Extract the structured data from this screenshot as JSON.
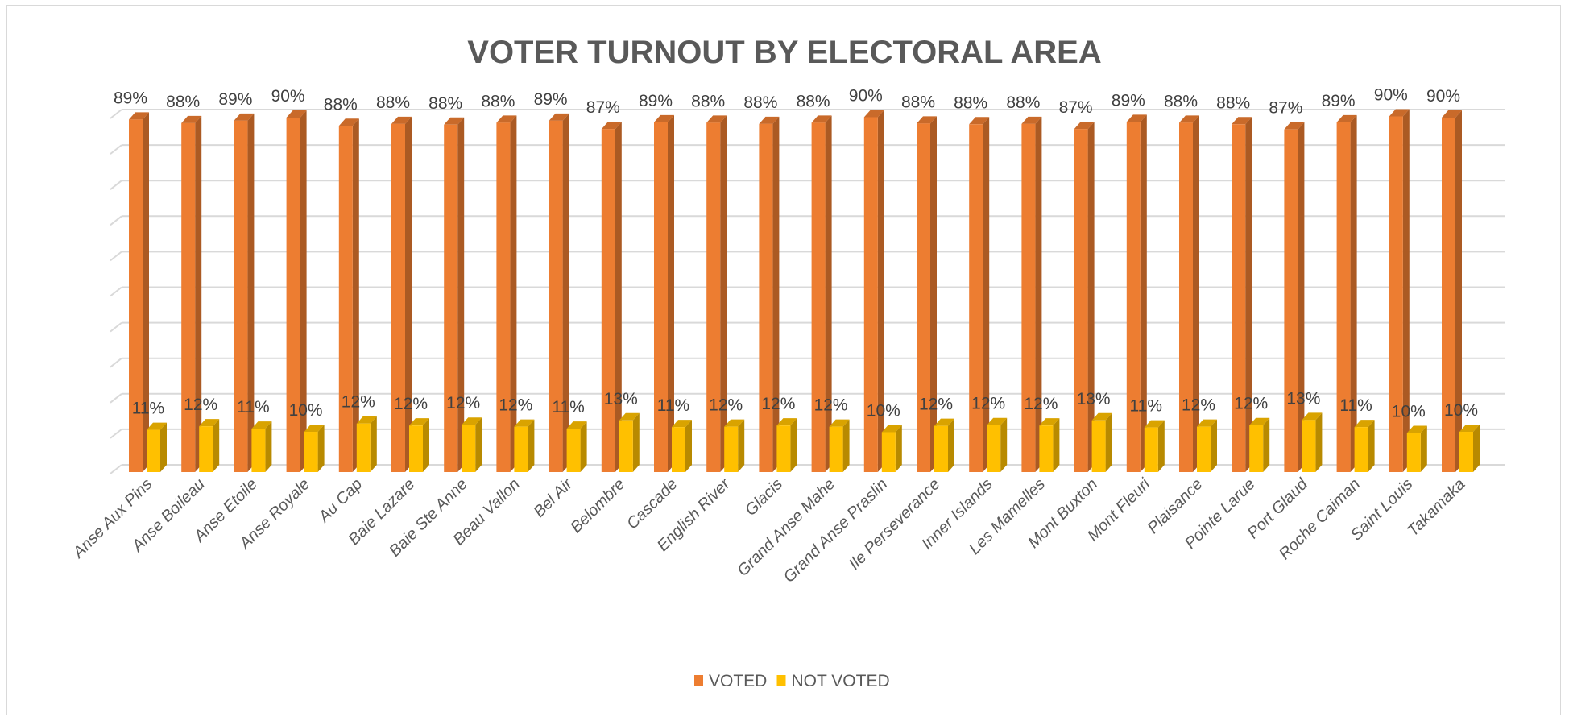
{
  "chart_data": {
    "type": "bar",
    "title": "VOTER TURNOUT BY ELECTORAL AREA",
    "categories": [
      "Anse Aux Pins",
      "Anse Boileau",
      "Anse Etoile",
      "Anse Royale",
      "Au Cap",
      "Baie Lazare",
      "Baie Ste Anne",
      "Beau Vallon",
      "Bel Air",
      "Belombre",
      "Cascade",
      "English River",
      "Glacis",
      "Grand Anse Mahe",
      "Grand Anse Praslin",
      "Ile Perseverance",
      "Inner Islands",
      "Les Mamelles",
      "Mont Buxton",
      "Mont Fleuri",
      "Plaisance",
      "Pointe Larue",
      "Port Glaud",
      "Roche Caiman",
      "Saint Louis",
      "Takamaka"
    ],
    "series": [
      {
        "name": "VOTED",
        "color": "#ED7D31",
        "values": [
          89.3,
          88.4,
          89.0,
          89.8,
          87.7,
          88.2,
          88.0,
          88.5,
          89.0,
          86.9,
          88.6,
          88.5,
          88.2,
          88.5,
          89.9,
          88.3,
          88.1,
          88.2,
          86.9,
          88.7,
          88.5,
          88.1,
          86.8,
          88.6,
          90.1,
          89.8
        ],
        "labels": [
          "89%",
          "88%",
          "89%",
          "90%",
          "88%",
          "88%",
          "88%",
          "88%",
          "89%",
          "87%",
          "89%",
          "88%",
          "88%",
          "88%",
          "90%",
          "88%",
          "88%",
          "88%",
          "87%",
          "89%",
          "88%",
          "88%",
          "87%",
          "89%",
          "90%",
          "90%"
        ]
      },
      {
        "name": "NOT VOTED",
        "color": "#FFC000",
        "values": [
          10.7,
          11.6,
          11.0,
          10.2,
          12.3,
          11.8,
          12.0,
          11.5,
          11.0,
          13.1,
          11.4,
          11.5,
          11.8,
          11.5,
          10.1,
          11.7,
          11.9,
          11.8,
          13.1,
          11.3,
          11.5,
          11.9,
          13.2,
          11.4,
          9.9,
          10.2
        ],
        "labels": [
          "11%",
          "12%",
          "11%",
          "10%",
          "12%",
          "12%",
          "12%",
          "12%",
          "11%",
          "13%",
          "11%",
          "12%",
          "12%",
          "12%",
          "10%",
          "12%",
          "12%",
          "12%",
          "13%",
          "11%",
          "12%",
          "12%",
          "13%",
          "11%",
          "10%",
          "10%"
        ]
      }
    ],
    "ylim": [
      0,
      90
    ],
    "grid": true,
    "legend_position": "bottom"
  }
}
